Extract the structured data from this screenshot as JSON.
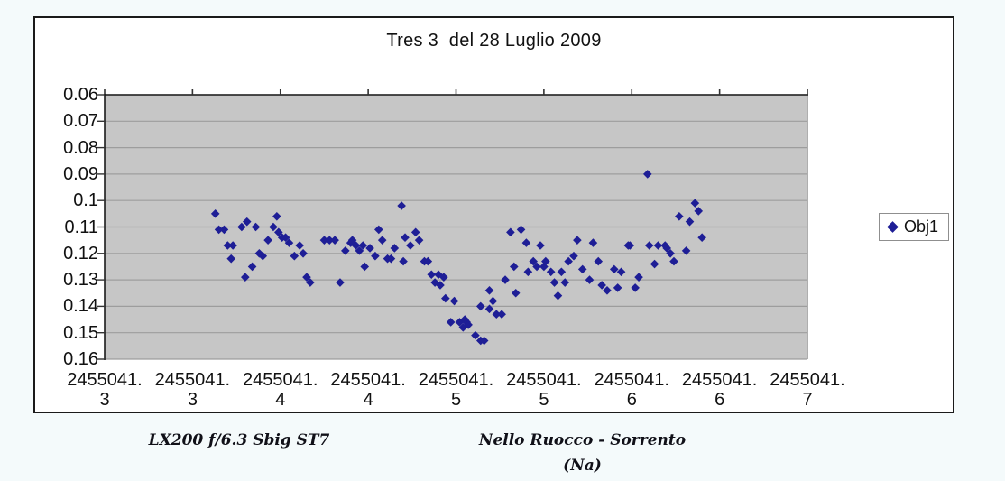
{
  "chart": {
    "title": "Tres 3  del 28 Luglio 2009",
    "footer_left": "LX200 f/6.3  Sbig ST7",
    "footer_right": "Nello Ruocco - Sorrento (Na)"
  },
  "chart_data": {
    "type": "scatter",
    "title": "Tres 3  del 28 Luglio 2009",
    "legend": [
      "Obj1"
    ],
    "legend_position": "right",
    "marker": {
      "shape": "diamond",
      "color": "#1e1e96"
    },
    "plot_bg_color": "#c6c6c6",
    "gridline_color": "#9d9d9d",
    "grid": "horizontal",
    "x_axis": {
      "min": 2455041.25,
      "max": 2455041.65,
      "tick_step": 0.05,
      "tick_labels": [
        {
          "top": "2455041.",
          "bottom": "3"
        },
        {
          "top": "2455041.",
          "bottom": "3"
        },
        {
          "top": "2455041.",
          "bottom": "4"
        },
        {
          "top": "2455041.",
          "bottom": "4"
        },
        {
          "top": "2455041.",
          "bottom": "5"
        },
        {
          "top": "2455041.",
          "bottom": "5"
        },
        {
          "top": "2455041.",
          "bottom": "6"
        },
        {
          "top": "2455041.",
          "bottom": "6"
        },
        {
          "top": "2455041.",
          "bottom": "7"
        }
      ]
    },
    "y_axis": {
      "min": 0.06,
      "max": 0.16,
      "inverted_magnitude_scale": true,
      "tick_labels": [
        "0.06",
        "0.07",
        "0.08",
        "0.09",
        "0.1",
        "0.11",
        "0.12",
        "0.13",
        "0.14",
        "0.15",
        "0.16"
      ]
    },
    "series": [
      {
        "name": "Obj1",
        "points": [
          [
            2455041.313,
            0.105
          ],
          [
            2455041.315,
            0.111
          ],
          [
            2455041.318,
            0.111
          ],
          [
            2455041.32,
            0.117
          ],
          [
            2455041.322,
            0.122
          ],
          [
            2455041.323,
            0.117
          ],
          [
            2455041.328,
            0.11
          ],
          [
            2455041.33,
            0.129
          ],
          [
            2455041.331,
            0.108
          ],
          [
            2455041.334,
            0.125
          ],
          [
            2455041.336,
            0.11
          ],
          [
            2455041.338,
            0.12
          ],
          [
            2455041.34,
            0.121
          ],
          [
            2455041.343,
            0.115
          ],
          [
            2455041.346,
            0.11
          ],
          [
            2455041.348,
            0.106
          ],
          [
            2455041.349,
            0.112
          ],
          [
            2455041.351,
            0.114
          ],
          [
            2455041.353,
            0.114
          ],
          [
            2455041.355,
            0.116
          ],
          [
            2455041.358,
            0.121
          ],
          [
            2455041.361,
            0.117
          ],
          [
            2455041.363,
            0.12
          ],
          [
            2455041.365,
            0.129
          ],
          [
            2455041.367,
            0.131
          ],
          [
            2455041.375,
            0.115
          ],
          [
            2455041.378,
            0.115
          ],
          [
            2455041.381,
            0.115
          ],
          [
            2455041.384,
            0.131
          ],
          [
            2455041.387,
            0.119
          ],
          [
            2455041.39,
            0.116
          ],
          [
            2455041.391,
            0.115
          ],
          [
            2455041.393,
            0.117
          ],
          [
            2455041.395,
            0.119
          ],
          [
            2455041.397,
            0.117
          ],
          [
            2455041.398,
            0.125
          ],
          [
            2455041.401,
            0.118
          ],
          [
            2455041.404,
            0.121
          ],
          [
            2455041.406,
            0.111
          ],
          [
            2455041.408,
            0.115
          ],
          [
            2455041.411,
            0.122
          ],
          [
            2455041.413,
            0.122
          ],
          [
            2455041.415,
            0.118
          ],
          [
            2455041.419,
            0.102
          ],
          [
            2455041.42,
            0.123
          ],
          [
            2455041.421,
            0.114
          ],
          [
            2455041.424,
            0.117
          ],
          [
            2455041.427,
            0.112
          ],
          [
            2455041.429,
            0.115
          ],
          [
            2455041.432,
            0.123
          ],
          [
            2455041.434,
            0.123
          ],
          [
            2455041.436,
            0.128
          ],
          [
            2455041.438,
            0.131
          ],
          [
            2455041.44,
            0.128
          ],
          [
            2455041.441,
            0.132
          ],
          [
            2455041.443,
            0.129
          ],
          [
            2455041.444,
            0.137
          ],
          [
            2455041.447,
            0.146
          ],
          [
            2455041.449,
            0.138
          ],
          [
            2455041.452,
            0.146
          ],
          [
            2455041.454,
            0.148
          ],
          [
            2455041.455,
            0.145
          ],
          [
            2455041.456,
            0.146
          ],
          [
            2455041.457,
            0.147
          ],
          [
            2455041.461,
            0.151
          ],
          [
            2455041.464,
            0.14
          ],
          [
            2455041.464,
            0.153
          ],
          [
            2455041.466,
            0.153
          ],
          [
            2455041.469,
            0.134
          ],
          [
            2455041.469,
            0.141
          ],
          [
            2455041.471,
            0.138
          ],
          [
            2455041.473,
            0.143
          ],
          [
            2455041.476,
            0.143
          ],
          [
            2455041.478,
            0.13
          ],
          [
            2455041.481,
            0.112
          ],
          [
            2455041.483,
            0.125
          ],
          [
            2455041.484,
            0.135
          ],
          [
            2455041.487,
            0.111
          ],
          [
            2455041.49,
            0.116
          ],
          [
            2455041.491,
            0.127
          ],
          [
            2455041.494,
            0.123
          ],
          [
            2455041.496,
            0.125
          ],
          [
            2455041.498,
            0.117
          ],
          [
            2455041.5,
            0.125
          ],
          [
            2455041.501,
            0.123
          ],
          [
            2455041.504,
            0.127
          ],
          [
            2455041.506,
            0.131
          ],
          [
            2455041.508,
            0.136
          ],
          [
            2455041.51,
            0.127
          ],
          [
            2455041.512,
            0.131
          ],
          [
            2455041.514,
            0.123
          ],
          [
            2455041.517,
            0.121
          ],
          [
            2455041.519,
            0.115
          ],
          [
            2455041.522,
            0.126
          ],
          [
            2455041.526,
            0.13
          ],
          [
            2455041.528,
            0.116
          ],
          [
            2455041.531,
            0.123
          ],
          [
            2455041.533,
            0.132
          ],
          [
            2455041.536,
            0.134
          ],
          [
            2455041.54,
            0.126
          ],
          [
            2455041.542,
            0.133
          ],
          [
            2455041.544,
            0.127
          ],
          [
            2455041.548,
            0.117
          ],
          [
            2455041.549,
            0.117
          ],
          [
            2455041.552,
            0.133
          ],
          [
            2455041.554,
            0.129
          ],
          [
            2455041.559,
            0.09
          ],
          [
            2455041.56,
            0.117
          ],
          [
            2455041.563,
            0.124
          ],
          [
            2455041.565,
            0.117
          ],
          [
            2455041.569,
            0.117
          ],
          [
            2455041.57,
            0.118
          ],
          [
            2455041.572,
            0.12
          ],
          [
            2455041.574,
            0.123
          ],
          [
            2455041.577,
            0.106
          ],
          [
            2455041.581,
            0.119
          ],
          [
            2455041.583,
            0.108
          ],
          [
            2455041.586,
            0.101
          ],
          [
            2455041.588,
            0.104
          ],
          [
            2455041.59,
            0.114
          ]
        ]
      }
    ]
  }
}
